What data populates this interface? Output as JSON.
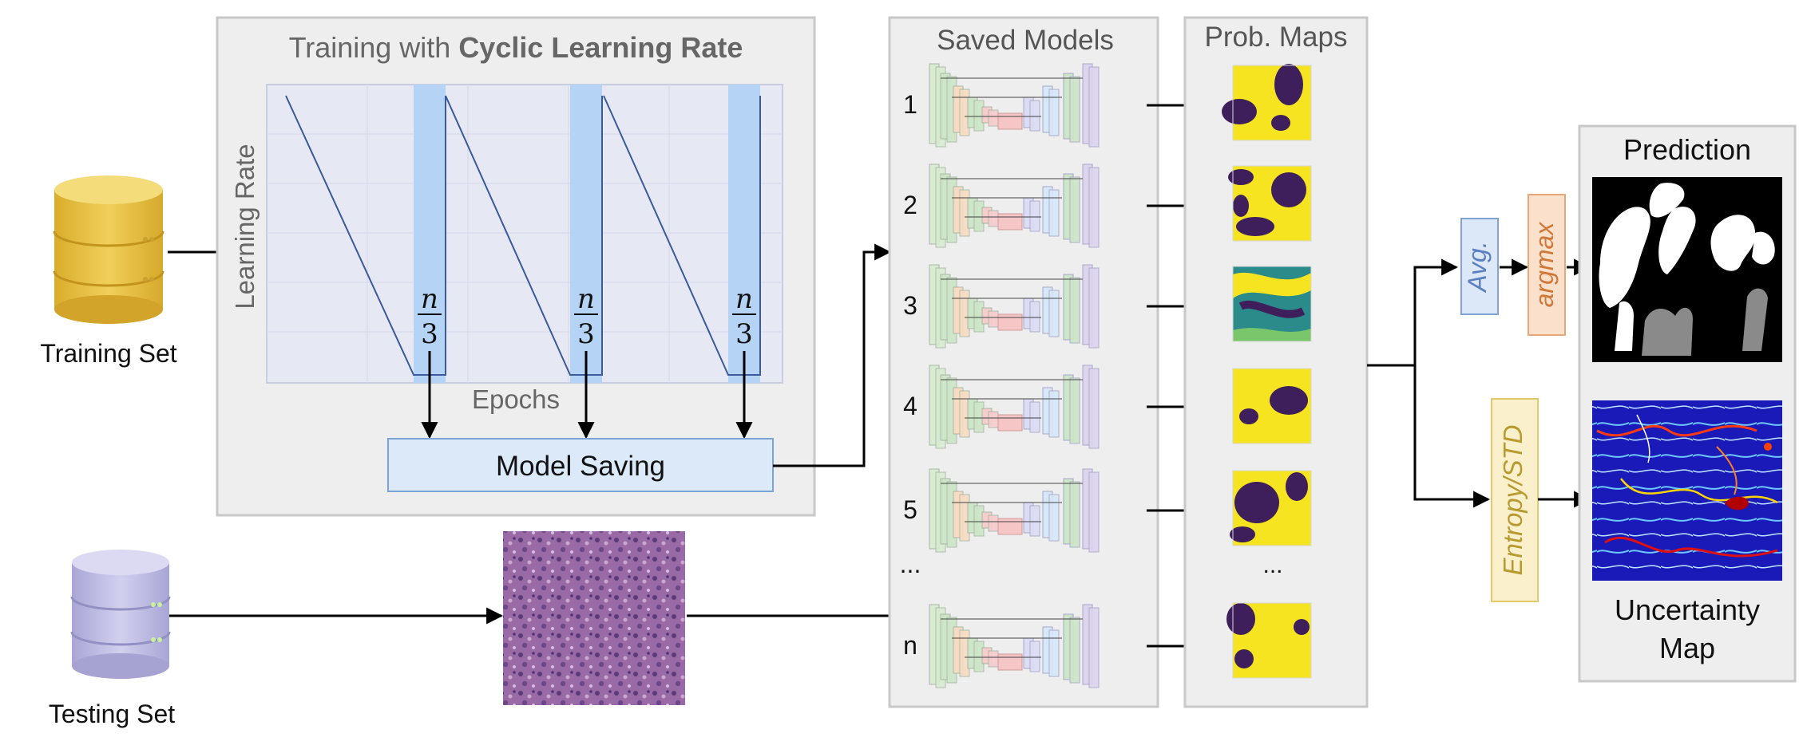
{
  "training_set": {
    "label": "Training Set"
  },
  "testing_set": {
    "label": "Testing Set"
  },
  "training_panel": {
    "title_prefix": "Training with ",
    "title_bold": "Cyclic Learning Rate",
    "y_axis_label": "Learning Rate",
    "x_axis_label": "Epochs",
    "cycle_fraction_numerator": "n",
    "cycle_fraction_denominator": "3",
    "num_cycles": 3
  },
  "model_saving": {
    "label": "Model Saving"
  },
  "saved_models": {
    "title": "Saved Models",
    "indices": [
      "1",
      "2",
      "3",
      "4",
      "5",
      "...",
      "n"
    ]
  },
  "prob_maps": {
    "title": "Prob. Maps",
    "ellipsis": "..."
  },
  "aggregation": {
    "avg_label": "Avg.",
    "argmax_label": "argmax",
    "entropy_label": "Entropy/STD"
  },
  "outputs": {
    "prediction_title": "Prediction",
    "uncertainty_title_line1": "Uncertainty",
    "uncertainty_title_line2": "Map"
  },
  "colors": {
    "panel_fill": "#eeeeee",
    "panel_stroke": "#c8c8c8",
    "plot_fill": "#e6e8f4",
    "save_band": "#b5d3f5",
    "lr_line": "#3a5a9a",
    "model_saving_fill": "#dce9f9",
    "model_saving_stroke": "#7aa4d8",
    "avg_fill": "#dce8f8",
    "avg_stroke": "#7fa3d6",
    "avg_text": "#5a7fc0",
    "argmax_fill": "#fbe0cc",
    "argmax_stroke": "#e8a878",
    "argmax_text": "#d0783a",
    "entropy_fill": "#fbf0cc",
    "entropy_stroke": "#e3c86a",
    "entropy_text": "#b79a30",
    "db_gold": "#e8c44a",
    "db_purple": "#c4c2e6",
    "viridis_yellow": "#f5e41f",
    "viridis_purple": "#3e1f5c",
    "viridis_teal": "#2b8a8a"
  }
}
